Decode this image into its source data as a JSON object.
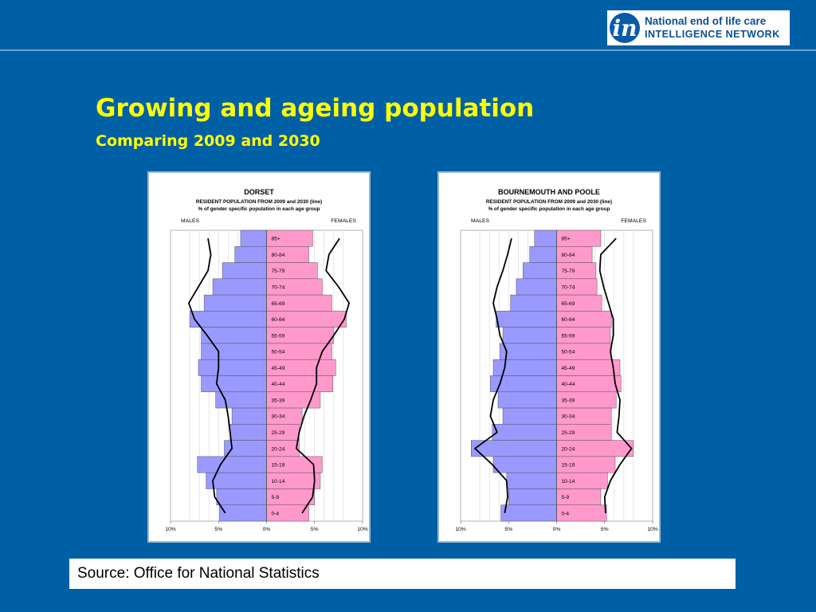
{
  "header": {
    "logo_mark": "in",
    "logo_line1": "National end of life care",
    "logo_line2": "INTELLIGENCE NETWORK"
  },
  "slide": {
    "title": "Growing and ageing population",
    "subtitle": "Comparing 2009 and 2030"
  },
  "footer": {
    "source": "Source: Office for National Statistics"
  },
  "colors": {
    "background": "#0060a6",
    "title": "#ffff00",
    "males_bar": "#9999ff",
    "females_bar": "#ff99cc",
    "line_2030": "#000000"
  },
  "chart_data": [
    {
      "type": "bar",
      "title": "DORSET",
      "subtitle_1": "RESIDENT POPULATION FROM 2009 and 2030 (line)",
      "subtitle_2": "% of gender specific population in each age group",
      "left_label": "MALES",
      "right_label": "FEMALES",
      "xlim": [
        -10,
        10
      ],
      "tick_labels": [
        "10%",
        "5%",
        "0%",
        "5%",
        "10%"
      ],
      "categories": [
        "85+",
        "80-84",
        "75-79",
        "70-74",
        "65-69",
        "60-64",
        "55-59",
        "50-54",
        "45-49",
        "40-44",
        "35-39",
        "30-34",
        "25-29",
        "20-24",
        "15-19",
        "10-14",
        "5-9",
        "0-4"
      ],
      "series": [
        {
          "group": "males",
          "year": "2009",
          "values": [
            2.7,
            3.3,
            4.6,
            5.6,
            6.5,
            8.0,
            6.8,
            6.8,
            7.1,
            6.8,
            5.3,
            3.6,
            3.8,
            4.4,
            7.2,
            6.3,
            5.2,
            4.9
          ]
        },
        {
          "group": "females",
          "year": "2009",
          "values": [
            4.8,
            4.4,
            5.3,
            5.8,
            6.8,
            8.3,
            7.0,
            6.8,
            7.2,
            6.9,
            5.6,
            3.7,
            3.4,
            3.4,
            5.8,
            5.6,
            5.0,
            4.4
          ]
        },
        {
          "group": "males",
          "year": "2030",
          "values": [
            6.1,
            5.8,
            6.1,
            7.1,
            8.1,
            7.5,
            6.2,
            5.0,
            5.0,
            5.2,
            4.3,
            4.0,
            3.8,
            3.6,
            4.8,
            5.6,
            5.4,
            4.3
          ]
        },
        {
          "group": "females",
          "year": "2030",
          "values": [
            7.6,
            6.5,
            6.2,
            7.5,
            8.6,
            8.1,
            7.0,
            5.8,
            5.2,
            5.2,
            4.6,
            3.9,
            3.4,
            3.1,
            4.9,
            5.0,
            4.8,
            3.7
          ]
        }
      ]
    },
    {
      "type": "bar",
      "title": "BOURNEMOUTH AND POOLE",
      "subtitle_1": "RESIDENT POPULATION FROM 2009 and 2030 (line)",
      "subtitle_2": "% of gender specific population in each age group",
      "left_label": "MALES",
      "right_label": "FEMALES",
      "xlim": [
        -10,
        10
      ],
      "tick_labels": [
        "10%",
        "5%",
        "0%",
        "5%",
        "10%"
      ],
      "categories": [
        "85+",
        "80-84",
        "75-79",
        "70-74",
        "65-69",
        "60-64",
        "55-59",
        "50-54",
        "45-49",
        "40-44",
        "35-39",
        "30-34",
        "25-29",
        "20-24",
        "15-19",
        "10-14",
        "5-9",
        "0-4"
      ],
      "series": [
        {
          "group": "males",
          "year": "2009",
          "values": [
            2.3,
            2.8,
            3.5,
            4.2,
            4.8,
            6.3,
            5.6,
            5.9,
            6.6,
            6.9,
            6.1,
            5.6,
            6.7,
            8.9,
            6.6,
            5.2,
            5.0,
            5.8
          ]
        },
        {
          "group": "females",
          "year": "2009",
          "values": [
            4.6,
            3.7,
            4.1,
            4.2,
            4.7,
            5.7,
            5.6,
            5.7,
            6.6,
            6.7,
            6.2,
            5.7,
            5.7,
            8.0,
            6.1,
            5.3,
            4.6,
            5.2
          ]
        },
        {
          "group": "males",
          "year": "2030",
          "values": [
            4.7,
            5.1,
            5.6,
            6.2,
            6.6,
            6.2,
            5.9,
            5.2,
            5.4,
            5.9,
            6.6,
            6.9,
            6.2,
            8.5,
            6.7,
            5.2,
            5.1,
            5.4
          ]
        },
        {
          "group": "females",
          "year": "2030",
          "values": [
            6.2,
            4.6,
            4.5,
            4.9,
            5.4,
            5.9,
            5.9,
            5.6,
            5.9,
            6.1,
            6.6,
            6.5,
            6.3,
            7.8,
            6.6,
            5.6,
            5.0,
            5.1
          ]
        }
      ]
    }
  ]
}
